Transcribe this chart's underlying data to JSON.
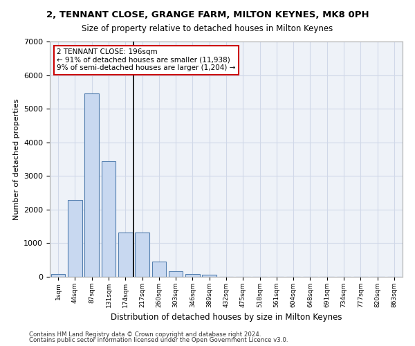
{
  "title_line1": "2, TENNANT CLOSE, GRANGE FARM, MILTON KEYNES, MK8 0PH",
  "title_line2": "Size of property relative to detached houses in Milton Keynes",
  "xlabel": "Distribution of detached houses by size in Milton Keynes",
  "ylabel": "Number of detached properties",
  "footer_line1": "Contains HM Land Registry data © Crown copyright and database right 2024.",
  "footer_line2": "Contains public sector information licensed under the Open Government Licence v3.0.",
  "bin_labels": [
    "1sqm",
    "44sqm",
    "87sqm",
    "131sqm",
    "174sqm",
    "217sqm",
    "260sqm",
    "303sqm",
    "346sqm",
    "389sqm",
    "432sqm",
    "475sqm",
    "518sqm",
    "561sqm",
    "604sqm",
    "648sqm",
    "691sqm",
    "734sqm",
    "777sqm",
    "820sqm",
    "863sqm"
  ],
  "bar_values": [
    75,
    2280,
    5450,
    3440,
    1320,
    1310,
    460,
    155,
    80,
    55,
    0,
    0,
    0,
    0,
    0,
    0,
    0,
    0,
    0,
    0,
    0
  ],
  "bar_color": "#c8d8f0",
  "bar_edge_color": "#5580b0",
  "ylim": [
    0,
    7000
  ],
  "yticks": [
    0,
    1000,
    2000,
    3000,
    4000,
    5000,
    6000,
    7000
  ],
  "vline_x": 4.5,
  "vline_color": "#000000",
  "annotation_text": "2 TENNANT CLOSE: 196sqm\n← 91% of detached houses are smaller (11,938)\n9% of semi-detached houses are larger (1,204) →",
  "annotation_box_color": "#ffffff",
  "annotation_box_edge_color": "#cc0000",
  "grid_color": "#d0d8e8",
  "bg_color": "#eef2f8"
}
